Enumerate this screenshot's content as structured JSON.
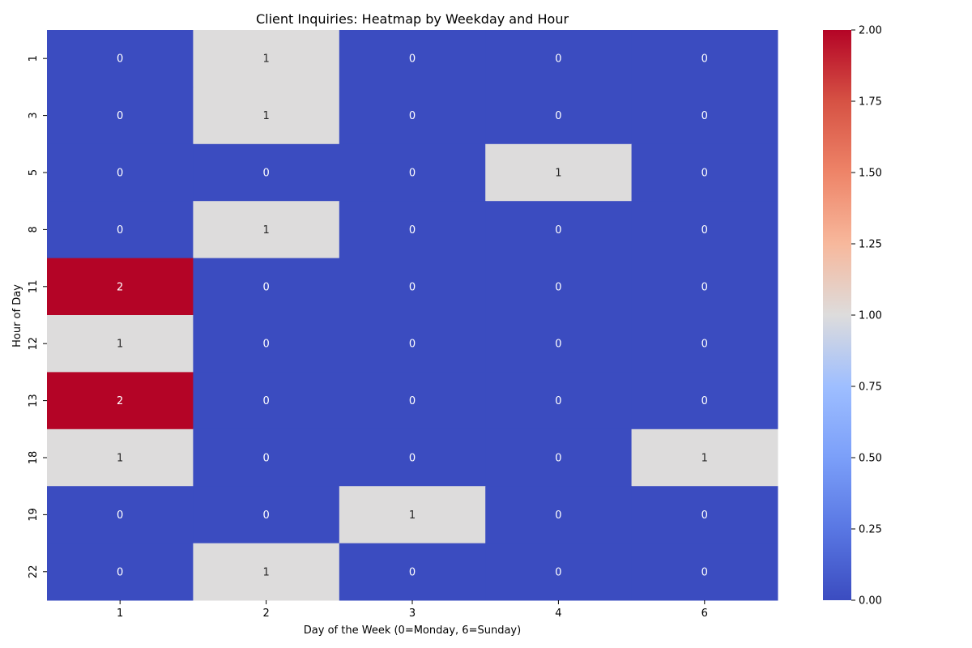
{
  "chart_data": {
    "type": "heatmap",
    "title": "Client Inquiries: Heatmap by Weekday and Hour",
    "xlabel": "Day of the Week (0=Monday, 6=Sunday)",
    "ylabel": "Hour of Day",
    "x_categories": [
      "1",
      "2",
      "3",
      "4",
      "6"
    ],
    "y_categories": [
      "1",
      "3",
      "5",
      "8",
      "11",
      "12",
      "13",
      "18",
      "19",
      "22"
    ],
    "values": [
      [
        0,
        1,
        0,
        0,
        0
      ],
      [
        0,
        1,
        0,
        0,
        0
      ],
      [
        0,
        0,
        0,
        1,
        0
      ],
      [
        0,
        1,
        0,
        0,
        0
      ],
      [
        2,
        0,
        0,
        0,
        0
      ],
      [
        1,
        0,
        0,
        0,
        0
      ],
      [
        2,
        0,
        0,
        0,
        0
      ],
      [
        1,
        0,
        0,
        0,
        1
      ],
      [
        0,
        0,
        1,
        0,
        0
      ],
      [
        0,
        1,
        0,
        0,
        0
      ]
    ],
    "colormap": "coolwarm",
    "colorbar": {
      "range": [
        0,
        2
      ],
      "ticks": [
        "0.00",
        "0.25",
        "0.50",
        "0.75",
        "1.00",
        "1.25",
        "1.50",
        "1.75",
        "2.00"
      ]
    },
    "annotations": true,
    "grid": false,
    "legend": "colorbar-right"
  }
}
